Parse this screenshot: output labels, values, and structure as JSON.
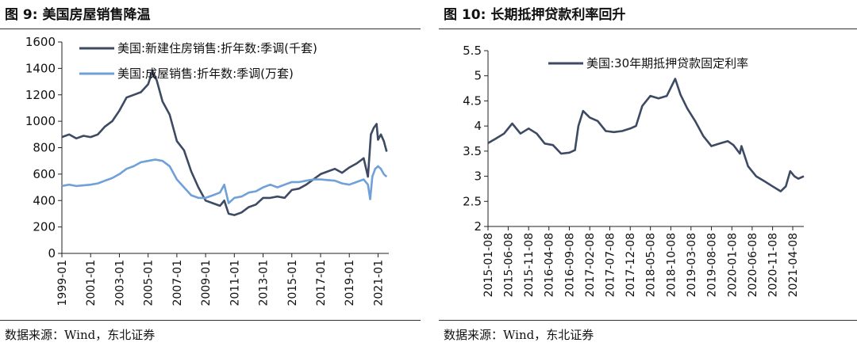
{
  "left": {
    "fig_label": "图 9:",
    "fig_title": "美国房屋销售降温",
    "source": "数据来源：Wind，东北证券",
    "colors": {
      "s1": "#3d4a63",
      "s2": "#6fa0d8"
    },
    "chart_data": {
      "type": "line",
      "ylim": [
        0,
        1600
      ],
      "yticks": [
        0,
        200,
        400,
        600,
        800,
        1000,
        1200,
        1400,
        1600
      ],
      "xlim": [
        1999.0,
        2021.75
      ],
      "xticks": [
        "1999-01",
        "2001-01",
        "2003-01",
        "2005-01",
        "2007-01",
        "2009-01",
        "2011-01",
        "2013-01",
        "2015-01",
        "2017-01",
        "2019-01",
        "2021-01"
      ],
      "legend_position": "top-left",
      "series": [
        {
          "name": "美国:新建住房销售:折年数:季调(千套)",
          "x": [
            1999.0,
            1999.5,
            2000.0,
            2000.5,
            2001.0,
            2001.5,
            2002.0,
            2002.5,
            2003.0,
            2003.5,
            2004.0,
            2004.5,
            2005.0,
            2005.3,
            2005.6,
            2006.0,
            2006.5,
            2007.0,
            2007.5,
            2008.0,
            2008.5,
            2009.0,
            2009.5,
            2010.0,
            2010.3,
            2010.6,
            2011.0,
            2011.5,
            2012.0,
            2012.5,
            2013.0,
            2013.5,
            2014.0,
            2014.5,
            2015.0,
            2015.5,
            2016.0,
            2016.5,
            2017.0,
            2017.5,
            2018.0,
            2018.5,
            2019.0,
            2019.5,
            2020.0,
            2020.3,
            2020.5,
            2020.7,
            2020.9,
            2021.0,
            2021.2,
            2021.4,
            2021.6
          ],
          "values": [
            880,
            900,
            870,
            890,
            880,
            900,
            960,
            1000,
            1080,
            1180,
            1200,
            1220,
            1280,
            1380,
            1310,
            1150,
            1050,
            850,
            780,
            620,
            500,
            400,
            380,
            360,
            400,
            300,
            290,
            310,
            350,
            370,
            420,
            420,
            430,
            420,
            480,
            490,
            520,
            560,
            600,
            620,
            640,
            610,
            650,
            680,
            720,
            580,
            900,
            950,
            980,
            860,
            900,
            850,
            770
          ]
        },
        {
          "name": "美国:成屋销售:折年数:季调(万套)",
          "x": [
            1999.0,
            1999.5,
            2000.0,
            2000.5,
            2001.0,
            2001.5,
            2002.0,
            2002.5,
            2003.0,
            2003.5,
            2004.0,
            2004.5,
            2005.0,
            2005.5,
            2006.0,
            2006.5,
            2007.0,
            2007.5,
            2008.0,
            2008.5,
            2009.0,
            2009.5,
            2010.0,
            2010.3,
            2010.6,
            2011.0,
            2011.5,
            2012.0,
            2012.5,
            2013.0,
            2013.5,
            2014.0,
            2014.5,
            2015.0,
            2015.5,
            2016.0,
            2016.5,
            2017.0,
            2017.5,
            2018.0,
            2018.5,
            2019.0,
            2019.5,
            2020.0,
            2020.3,
            2020.45,
            2020.6,
            2020.8,
            2021.0,
            2021.2,
            2021.4,
            2021.6
          ],
          "values": [
            510,
            520,
            510,
            515,
            520,
            530,
            550,
            570,
            600,
            640,
            660,
            690,
            700,
            710,
            700,
            660,
            560,
            500,
            440,
            420,
            420,
            440,
            460,
            520,
            380,
            420,
            430,
            460,
            470,
            500,
            520,
            500,
            520,
            540,
            540,
            550,
            560,
            560,
            555,
            550,
            530,
            520,
            540,
            560,
            520,
            410,
            580,
            640,
            660,
            640,
            600,
            580
          ]
        }
      ]
    }
  },
  "right": {
    "fig_label": "图 10:",
    "fig_title": "长期抵押贷款利率回升",
    "source": "数据来源：Wind，东北证券",
    "colors": {
      "s1": "#3d4a63"
    },
    "chart_data": {
      "type": "line",
      "ylim": [
        2,
        5.5
      ],
      "yticks": [
        "2",
        "2.5",
        "3",
        "3.5",
        "4",
        "4.5",
        "5",
        "5.5"
      ],
      "xlim": [
        "2015-01-08",
        "2021-06-30"
      ],
      "xticks": [
        "2015-01-08",
        "2015-06-08",
        "2015-11-08",
        "2016-04-08",
        "2016-09-08",
        "2017-02-08",
        "2017-07-08",
        "2017-12-08",
        "2018-05-08",
        "2018-10-08",
        "2019-03-08",
        "2019-08-08",
        "2020-01-08",
        "2020-06-08",
        "2020-11-08",
        "2021-04-08"
      ],
      "legend_position": "top-right",
      "series": [
        {
          "name": "美国:30年期抵押贷款固定利率",
          "x": [
            "2015-01-08",
            "2015-03-08",
            "2015-05-08",
            "2015-07-08",
            "2015-09-08",
            "2015-11-08",
            "2016-01-08",
            "2016-03-08",
            "2016-05-08",
            "2016-07-08",
            "2016-09-08",
            "2016-10-20",
            "2016-11-15",
            "2016-12-20",
            "2017-02-08",
            "2017-04-08",
            "2017-06-08",
            "2017-08-08",
            "2017-10-08",
            "2017-12-08",
            "2018-01-20",
            "2018-03-08",
            "2018-05-08",
            "2018-07-08",
            "2018-09-08",
            "2018-11-10",
            "2018-12-20",
            "2019-02-08",
            "2019-04-08",
            "2019-06-08",
            "2019-08-08",
            "2019-10-08",
            "2019-12-08",
            "2020-01-20",
            "2020-03-08",
            "2020-03-20",
            "2020-05-08",
            "2020-07-08",
            "2020-09-08",
            "2020-11-08",
            "2021-01-08",
            "2021-02-15",
            "2021-03-20",
            "2021-04-20",
            "2021-05-20",
            "2021-06-30"
          ],
          "values": [
            3.66,
            3.75,
            3.85,
            4.05,
            3.85,
            3.95,
            3.85,
            3.65,
            3.62,
            3.45,
            3.47,
            3.52,
            4.0,
            4.3,
            4.17,
            4.1,
            3.9,
            3.88,
            3.9,
            3.95,
            4.0,
            4.4,
            4.6,
            4.55,
            4.6,
            4.94,
            4.62,
            4.35,
            4.1,
            3.8,
            3.6,
            3.65,
            3.7,
            3.62,
            3.45,
            3.6,
            3.2,
            3.0,
            2.9,
            2.8,
            2.7,
            2.8,
            3.1,
            3.0,
            2.95,
            3.0
          ]
        }
      ]
    }
  }
}
